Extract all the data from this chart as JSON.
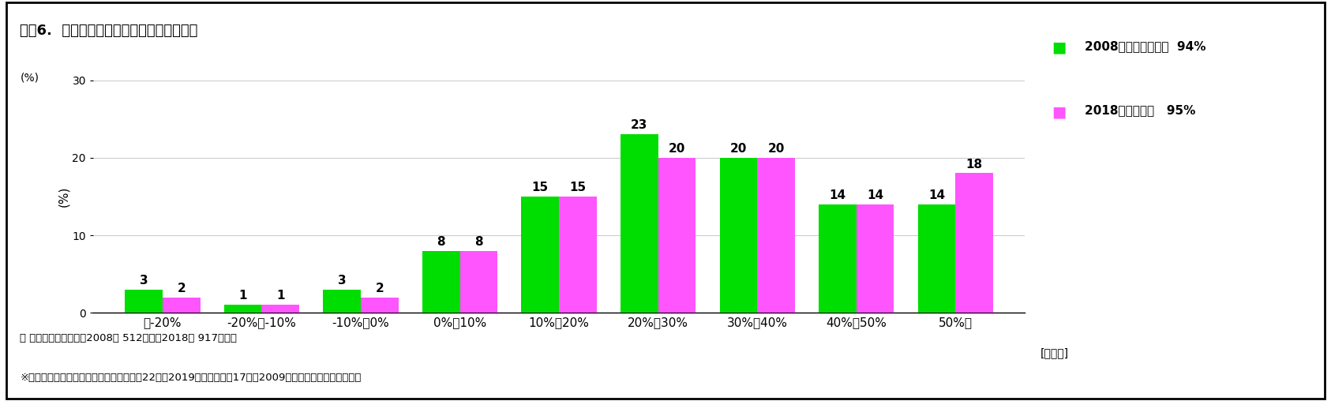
{
  "title": "図表6.  個人設立の一般診療所の収益率分布",
  "ylabel": "(%)",
  "xlabel_right": "[損益率]",
  "categories": [
    "〜-20%",
    "-20%〜-10%",
    "-10%〜0%",
    "0%〜10%",
    "10%〜20%",
    "20%〜30%",
    "30%〜40%",
    "40%〜50%",
    "50%〜"
  ],
  "values_2008": [
    3,
    1,
    3,
    8,
    15,
    23,
    20,
    14,
    14
  ],
  "values_2018": [
    2,
    1,
    2,
    8,
    15,
    20,
    20,
    14,
    18
  ],
  "color_2008": "#00dd00",
  "color_2018": "#ff55ff",
  "legend_label_2008": "2008年度",
  "legend_extra_2008": "黒字割合  94%",
  "legend_label_2018": "2018年度",
  "legend_extra_2018": "〃   95%",
  "ylim": [
    0,
    30
  ],
  "yticks": [
    0,
    10,
    20,
    30
  ],
  "note1": "＊ 有効回答施設数は、2008年 512施設、2018年 917施設。",
  "note2": "※「医療経済実態調査」（厚生労働省，第22回（2019年）および第17回（2009年））をもとに、筆者作成",
  "background_color": "#ffffff",
  "bar_width": 0.38
}
